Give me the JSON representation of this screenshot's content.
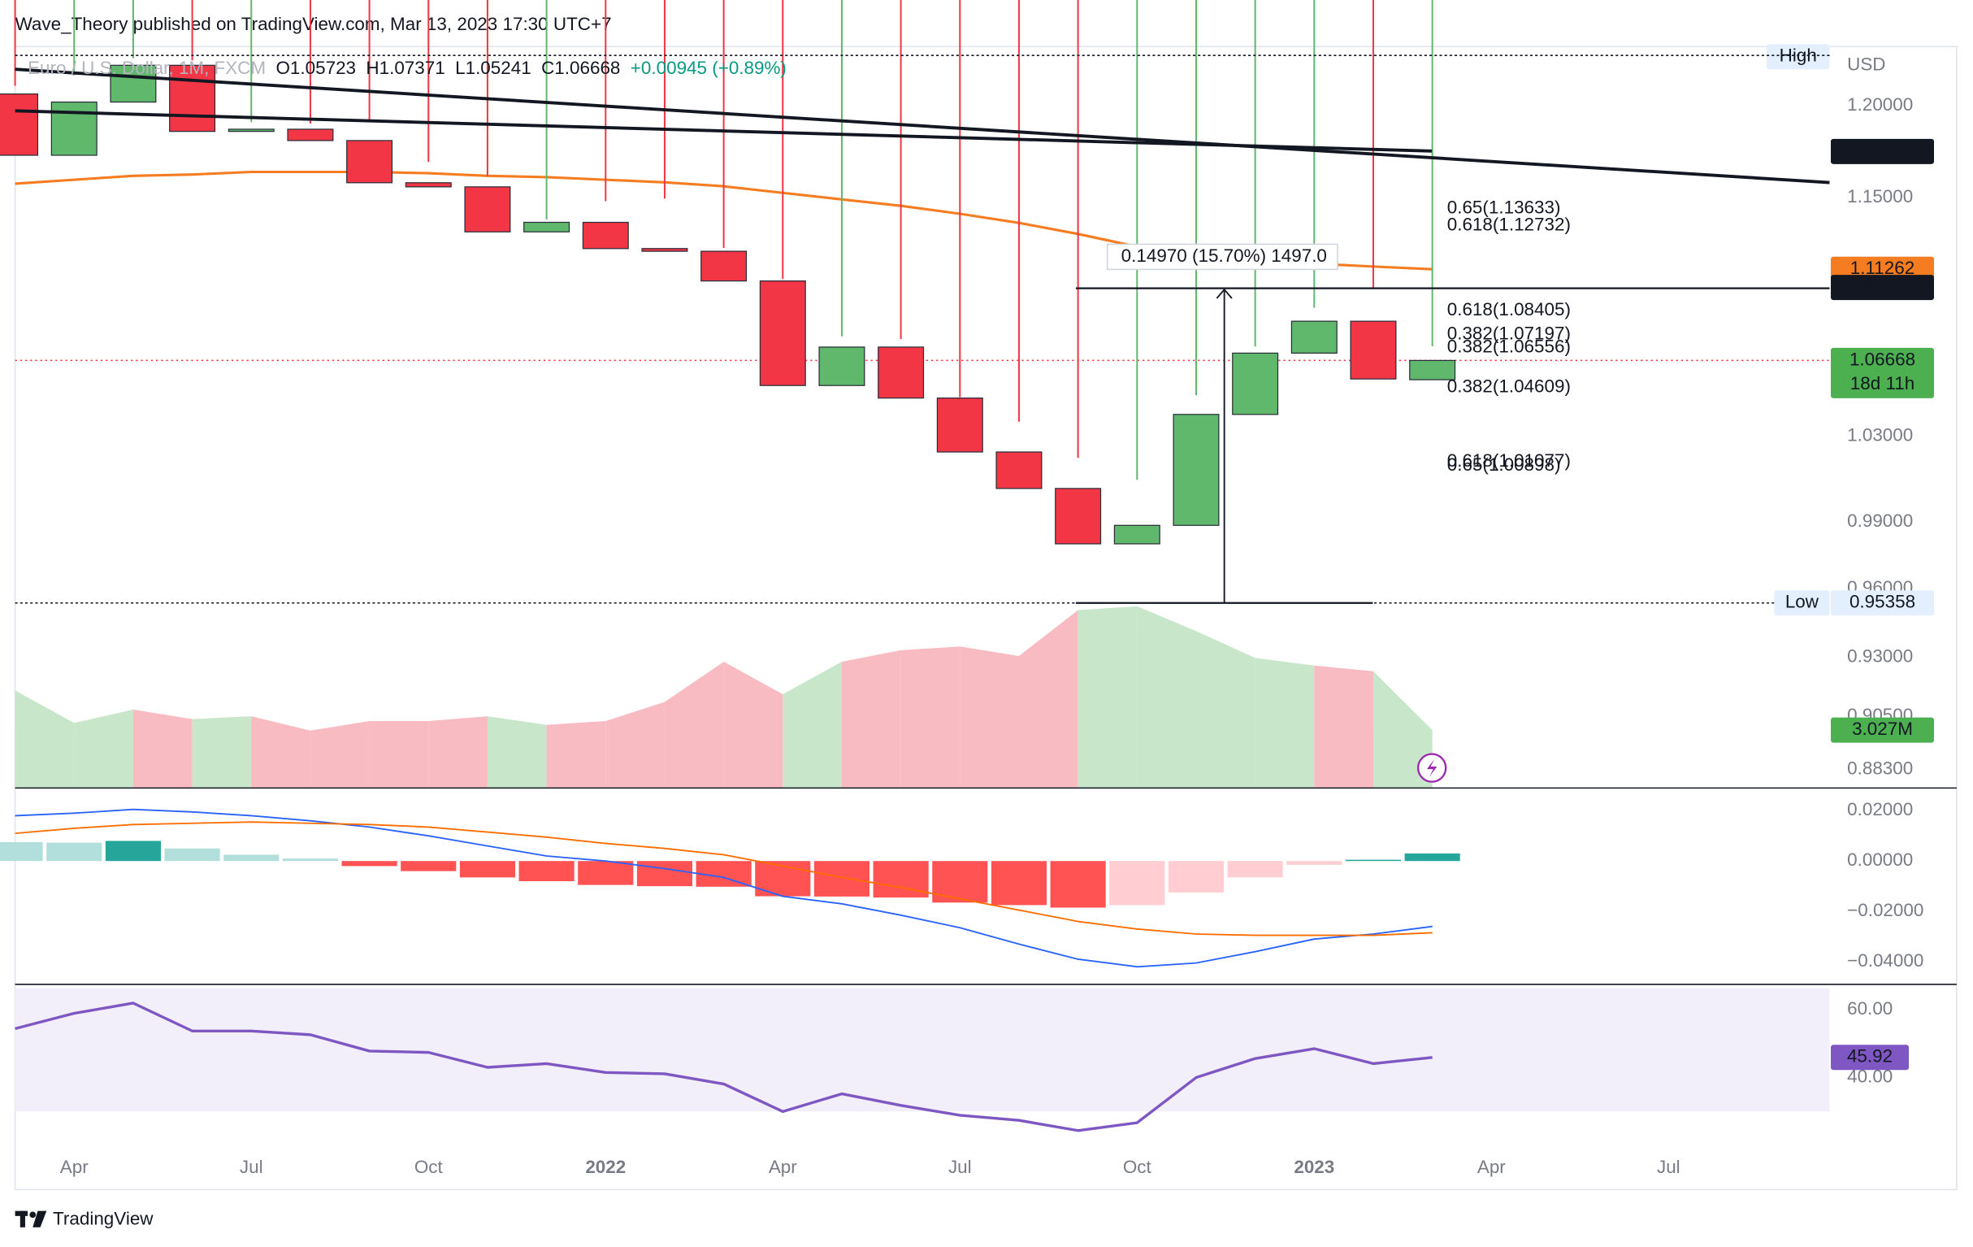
{
  "header": {
    "published": "Wave_Theory published on TradingView.com, Mar 13, 2023 17:30 UTC+7"
  },
  "footer": {
    "brand": "TradingView"
  },
  "chart_data": {
    "type": "candlestick",
    "legend": {
      "symbol": "Euro / U.S. Dollar, 1M, FXCM",
      "items": [
        "O1.05723",
        "H1.07371",
        "L1.05241",
        "C1.06668",
        "+0.00945 (+0.89%)"
      ]
    },
    "categories": [
      null,
      "Apr",
      null,
      null,
      "Jul",
      null,
      null,
      "Oct",
      null,
      null,
      "2022",
      null,
      null,
      "Apr",
      null,
      null,
      "Jul",
      null,
      null,
      "Oct",
      null,
      null,
      "2023",
      null,
      null,
      "Apr",
      null,
      null,
      "Jul"
    ],
    "open": [
      1.2065,
      1.1728,
      1.202,
      1.2226,
      1.1858,
      1.187,
      1.1808,
      1.158,
      1.1558,
      1.132,
      1.137,
      1.1233,
      1.1219,
      1.1066,
      1.0544,
      1.0733,
      1.0483,
      1.0225,
      1.0054,
      0.98,
      0.9884,
      1.0404,
      1.0703,
      1.0862,
      1.05723,
      null,
      null,
      null,
      null
    ],
    "high": [
      1.211,
      1.2169,
      1.2266,
      1.2254,
      1.1909,
      1.1901,
      1.1909,
      1.1692,
      1.1616,
      1.1385,
      1.1482,
      1.1495,
      1.1236,
      1.1076,
      1.0787,
      1.0773,
      1.0487,
      1.0369,
      1.0197,
      1.0094,
      1.0497,
      1.0736,
      1.093,
      1.1033,
      1.07371,
      null,
      null,
      null,
      null
    ],
    "low": {
      "label": "Low",
      "value": 0.95358
    },
    "close": [
      1.1728,
      1.202,
      1.2226,
      1.1858,
      1.187,
      1.1808,
      1.158,
      1.1558,
      1.132,
      1.137,
      1.1233,
      1.1219,
      1.1066,
      1.0544,
      1.0733,
      1.0483,
      1.0225,
      1.0054,
      0.98,
      0.9884,
      1.0404,
      1.0703,
      1.0862,
      1.0576,
      1.06668,
      null,
      null,
      null,
      null
    ],
    "up_color": "#5fb86b",
    "down_color": "#f23645",
    "border_color": "#2a2e39",
    "log_scale": true,
    "ylim": [
      0.8754,
      1.2332
    ],
    "yticks": [
      {
        "value": 1.2,
        "label": "1.20000"
      },
      {
        "value": 1.15,
        "label": "1.15000"
      },
      {
        "value": 1.03,
        "label": "1.03000"
      },
      {
        "value": 0.99,
        "label": "0.99000"
      },
      {
        "value": 0.96,
        "label": "0.96000"
      },
      {
        "value": 0.93,
        "label": "0.93000"
      },
      {
        "value": 0.905,
        "label": "0.90500"
      },
      {
        "value": 0.883,
        "label": "0.88300"
      }
    ],
    "currency": "USD",
    "high_label": "High",
    "last_price": {
      "value": 1.06668,
      "countdown": "18d 11h",
      "color": "#4caf50"
    },
    "levels": [
      {
        "value": 1.17485,
        "color": "#131722"
      },
      {
        "value": 1.11262,
        "color": "#f57c20"
      },
      {
        "value": 1.10328,
        "color": "#131722"
      }
    ],
    "ema": {
      "color": "#f57c20",
      "values": [
        1.1575,
        1.1596,
        1.1617,
        1.1624,
        1.1638,
        1.1638,
        1.1638,
        1.1631,
        1.1617,
        1.161,
        1.1596,
        1.1582,
        1.1561,
        1.1526,
        1.1491,
        1.1457,
        1.1415,
        1.1367,
        1.1309,
        1.1243,
        1.1201,
        1.1172,
        1.1155,
        1.114,
        1.11262,
        null,
        null,
        null,
        null
      ]
    },
    "fib_labels": [
      {
        "text": "0.65(1.13633)",
        "value": 1.13633,
        "color": "#f7c948"
      },
      {
        "text": "0.618(1.12732)",
        "value": 1.12732,
        "color": "#f59f00"
      },
      {
        "text": "0.618(1.08405)",
        "value": 1.08405,
        "color": "#f59f00"
      },
      {
        "text": "0.382(1.07197)",
        "value": 1.07197,
        "color": "#4caf50"
      },
      {
        "text": "0.382(1.06556)",
        "value": 1.06556,
        "color": "#4caf50"
      },
      {
        "text": "0.382(1.04609)",
        "value": 1.04609,
        "color": "#4caf50"
      },
      {
        "text": "0.618(1.01077)",
        "value": 1.01077,
        "color": "#f59f00"
      },
      {
        "text": "0.65(1.00898)",
        "value": 1.00898,
        "color": "#f7c948"
      }
    ],
    "measure_label": "0.14970 (15.70%) 1497.0",
    "volume": {
      "ylim": [
        0,
        38.75
      ],
      "up_color": "#c8e6c9",
      "down_color": "#f8bbc1",
      "label_color": "#4caf50",
      "values": [
        5.1,
        3.4,
        4.1,
        3.6,
        3.75,
        3.0,
        3.5,
        3.5,
        3.75,
        3.3,
        3.5,
        4.5,
        6.6,
        4.9,
        6.6,
        7.2,
        7.4,
        6.9,
        9.3,
        9.5,
        8.2,
        6.8,
        6.4,
        6.1,
        3.027,
        null,
        null,
        null,
        null
      ],
      "last_value_label": "3.027M"
    },
    "macd": {
      "ylim": [
        -0.049,
        0.028
      ],
      "yticks": [
        {
          "value": 0.02,
          "label": "0.02000"
        },
        {
          "value": 0,
          "label": "0.00000"
        },
        {
          "value": -0.02,
          "label": "−0.02000"
        },
        {
          "value": -0.04,
          "label": "−0.04000"
        }
      ],
      "colors": {
        "grow_above": "#26a69a",
        "fall_above": "#b2dfdb",
        "grow_below": "#ffcdd2",
        "fall_below": "#ff5252"
      },
      "histogram": [
        0.0075,
        0.0073,
        0.008,
        0.005,
        0.0025,
        0.001,
        -0.002,
        -0.004,
        -0.0065,
        -0.008,
        -0.0095,
        -0.01,
        -0.0102,
        -0.014,
        -0.0141,
        -0.0145,
        -0.0165,
        -0.0175,
        -0.0185,
        -0.0175,
        -0.0125,
        -0.0065,
        -0.0015,
        0.0005,
        0.003,
        null,
        null,
        null,
        null
      ],
      "macd_line": {
        "color": "#2962ff",
        "values": [
          0.018,
          0.019,
          0.0205,
          0.0195,
          0.018,
          0.016,
          0.0135,
          0.01,
          0.006,
          0.002,
          0,
          -0.003,
          -0.0065,
          -0.014,
          -0.017,
          -0.0215,
          -0.0265,
          -0.033,
          -0.039,
          -0.042,
          -0.0405,
          -0.036,
          -0.031,
          -0.029,
          -0.026,
          null,
          null,
          null,
          null
        ]
      },
      "signal_line": {
        "color": "#ff6d00",
        "values": [
          0.011,
          0.013,
          0.0145,
          0.015,
          0.0155,
          0.015,
          0.0145,
          0.0135,
          0.0115,
          0.0095,
          0.007,
          0.005,
          0.0025,
          -0.002,
          -0.0065,
          -0.0105,
          -0.015,
          -0.0195,
          -0.024,
          -0.027,
          -0.029,
          -0.0295,
          -0.0295,
          -0.0295,
          -0.0285,
          null,
          null,
          null,
          null
        ]
      }
    },
    "rsi": {
      "ylim": [
        19.26,
        66.67
      ],
      "yticks": [
        {
          "value": 60,
          "label": "60.00"
        },
        {
          "value": 40,
          "label": "40.00"
        }
      ],
      "color": "#7e57c2",
      "values": [
        54.4,
        58.9,
        61.9,
        53.7,
        53.7,
        52.6,
        47.8,
        47.4,
        43,
        44.1,
        41.5,
        41.1,
        38.1,
        30,
        35.2,
        31.8,
        28.9,
        27.4,
        24.4,
        26.7,
        40,
        45.6,
        48.5,
        44.1,
        45.92,
        null,
        null,
        null,
        null
      ]
    }
  }
}
